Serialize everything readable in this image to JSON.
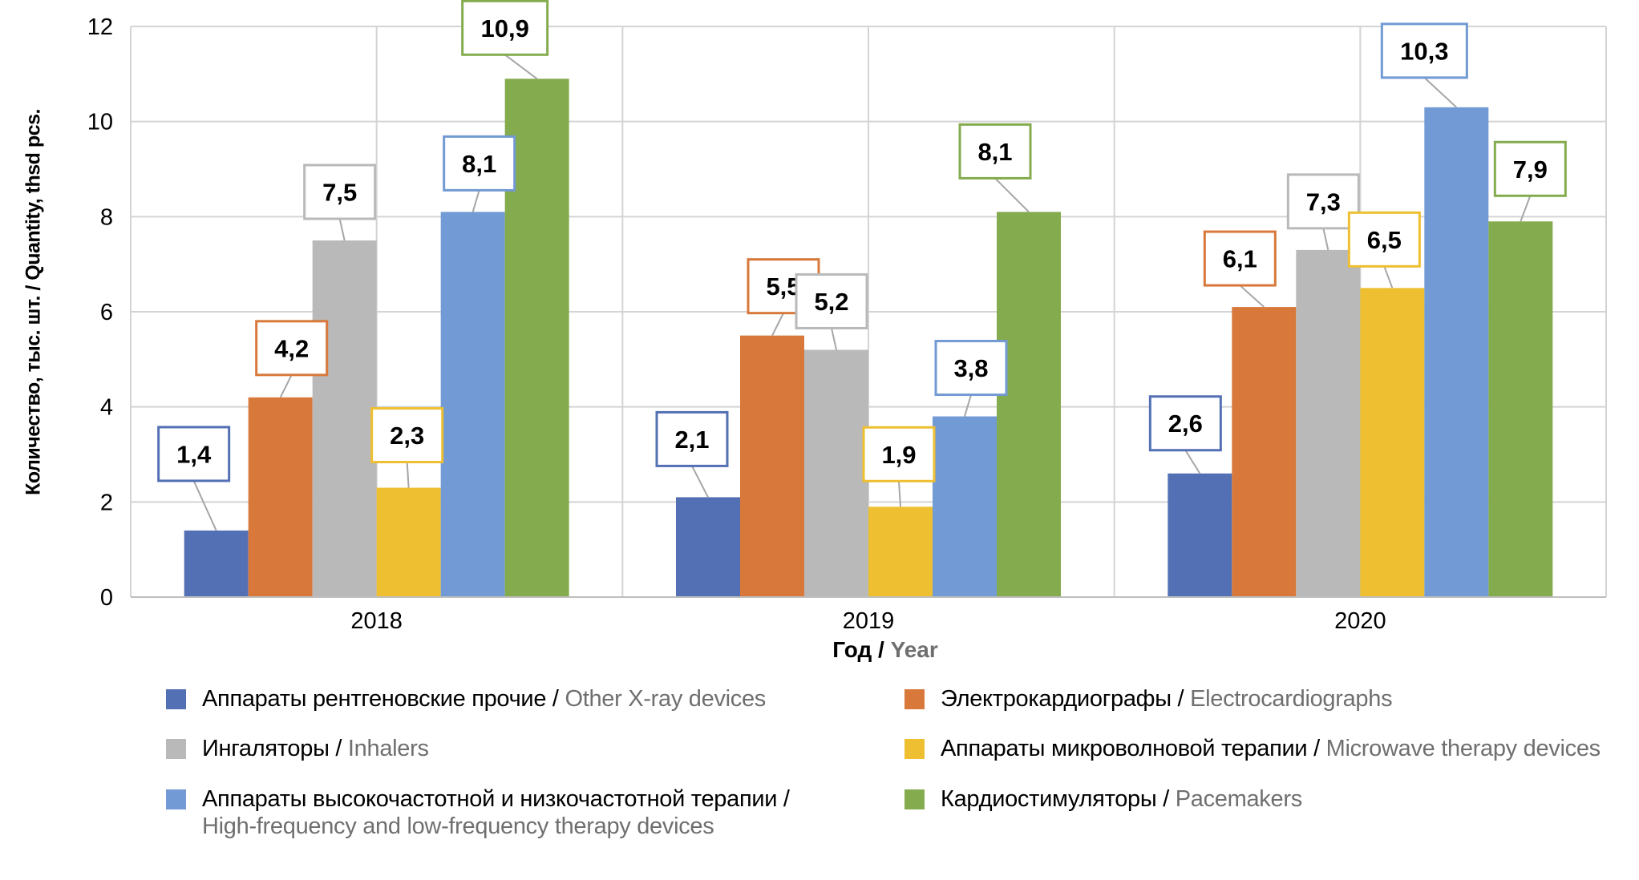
{
  "chart_data": {
    "type": "bar",
    "categories": [
      "2018",
      "2019",
      "2020"
    ],
    "xlabel": {
      "ru": "Год",
      "en": "Year"
    },
    "ylabel": {
      "ru": "Количество, тыс. шт.",
      "en": "Quantity, thsd pcs."
    },
    "ylim": [
      0,
      12
    ],
    "yticks": [
      "0",
      "2",
      "4",
      "6",
      "8",
      "10",
      "12"
    ],
    "grid": true,
    "legend_position": "bottom",
    "series": [
      {
        "name": {
          "ru": "Аппараты рентгеновские прочие",
          "en": "Other X-ray devices"
        },
        "color": "#5470b4",
        "values": [
          1.4,
          2.1,
          2.6
        ],
        "labels": [
          "1,4",
          "2,1",
          "2,6"
        ]
      },
      {
        "name": {
          "ru": "Электрокардиографы",
          "en": "Electrocardiographs"
        },
        "color": "#d8793b",
        "values": [
          4.2,
          5.5,
          6.1
        ],
        "labels": [
          "4,2",
          "5,5",
          "6,1"
        ]
      },
      {
        "name": {
          "ru": "Ингаляторы",
          "en": "Inhalers"
        },
        "color": "#b9b9b9",
        "values": [
          7.5,
          5.2,
          7.3
        ],
        "labels": [
          "7,5",
          "5,2",
          "7,3"
        ]
      },
      {
        "name": {
          "ru": "Аппараты микроволновой терапии",
          "en": "Microwave therapy devices"
        },
        "color": "#eebf31",
        "values": [
          2.3,
          1.9,
          6.5
        ],
        "labels": [
          "2,3",
          "1,9",
          "6,5"
        ]
      },
      {
        "name": {
          "ru": "Аппараты высокочастотной и низкочастотной терапии",
          "en": "High-frequency and low-frequency therapy devices"
        },
        "color": "#729ad4",
        "values": [
          8.1,
          3.8,
          10.3
        ],
        "labels": [
          "8,1",
          "3,8",
          "10,3"
        ]
      },
      {
        "name": {
          "ru": "Кардиостимуляторы",
          "en": "Pacemakers"
        },
        "color": "#84ab4e",
        "values": [
          10.9,
          8.1,
          7.9
        ],
        "labels": [
          "10,9",
          "8,1",
          "7,9"
        ]
      }
    ]
  }
}
